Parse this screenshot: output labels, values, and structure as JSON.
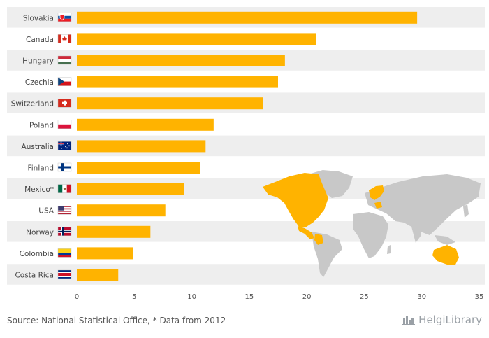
{
  "chart_data": {
    "type": "bar",
    "orientation": "horizontal",
    "categories": [
      "Slovakia",
      "Canada",
      "Hungary",
      "Czechia",
      "Switzerland",
      "Poland",
      "Australia",
      "Finland",
      "Mexico*",
      "USA",
      "Norway",
      "Colombia",
      "Costa Rica"
    ],
    "values": [
      29.6,
      20.8,
      18.1,
      17.5,
      16.2,
      11.9,
      11.2,
      10.7,
      9.3,
      7.7,
      6.4,
      4.9,
      3.6
    ],
    "xlim": [
      0,
      35
    ],
    "xticks": [
      "0",
      "5",
      "10",
      "15",
      "20",
      "25",
      "30",
      "35"
    ],
    "bar_color": "#FFB300",
    "xlabel": "",
    "ylabel": "",
    "title": "",
    "flags": [
      "slovakia-flag-icon",
      "canada-flag-icon",
      "hungary-flag-icon",
      "czechia-flag-icon",
      "switzerland-flag-icon",
      "poland-flag-icon",
      "australia-flag-icon",
      "finland-flag-icon",
      "mexico-flag-icon",
      "usa-flag-icon",
      "norway-flag-icon",
      "colombia-flag-icon",
      "costa-rica-flag-icon"
    ]
  },
  "footer": {
    "source": "Source: National Statistical Office, * Data from 2012"
  },
  "brand": {
    "logo_text": "HelgiLibrary",
    "logo_color": "#9aa0a6"
  },
  "colors": {
    "row_band": "#eeeeee",
    "map_gray": "#c8c8c8",
    "map_highlight": "#FFB300"
  }
}
